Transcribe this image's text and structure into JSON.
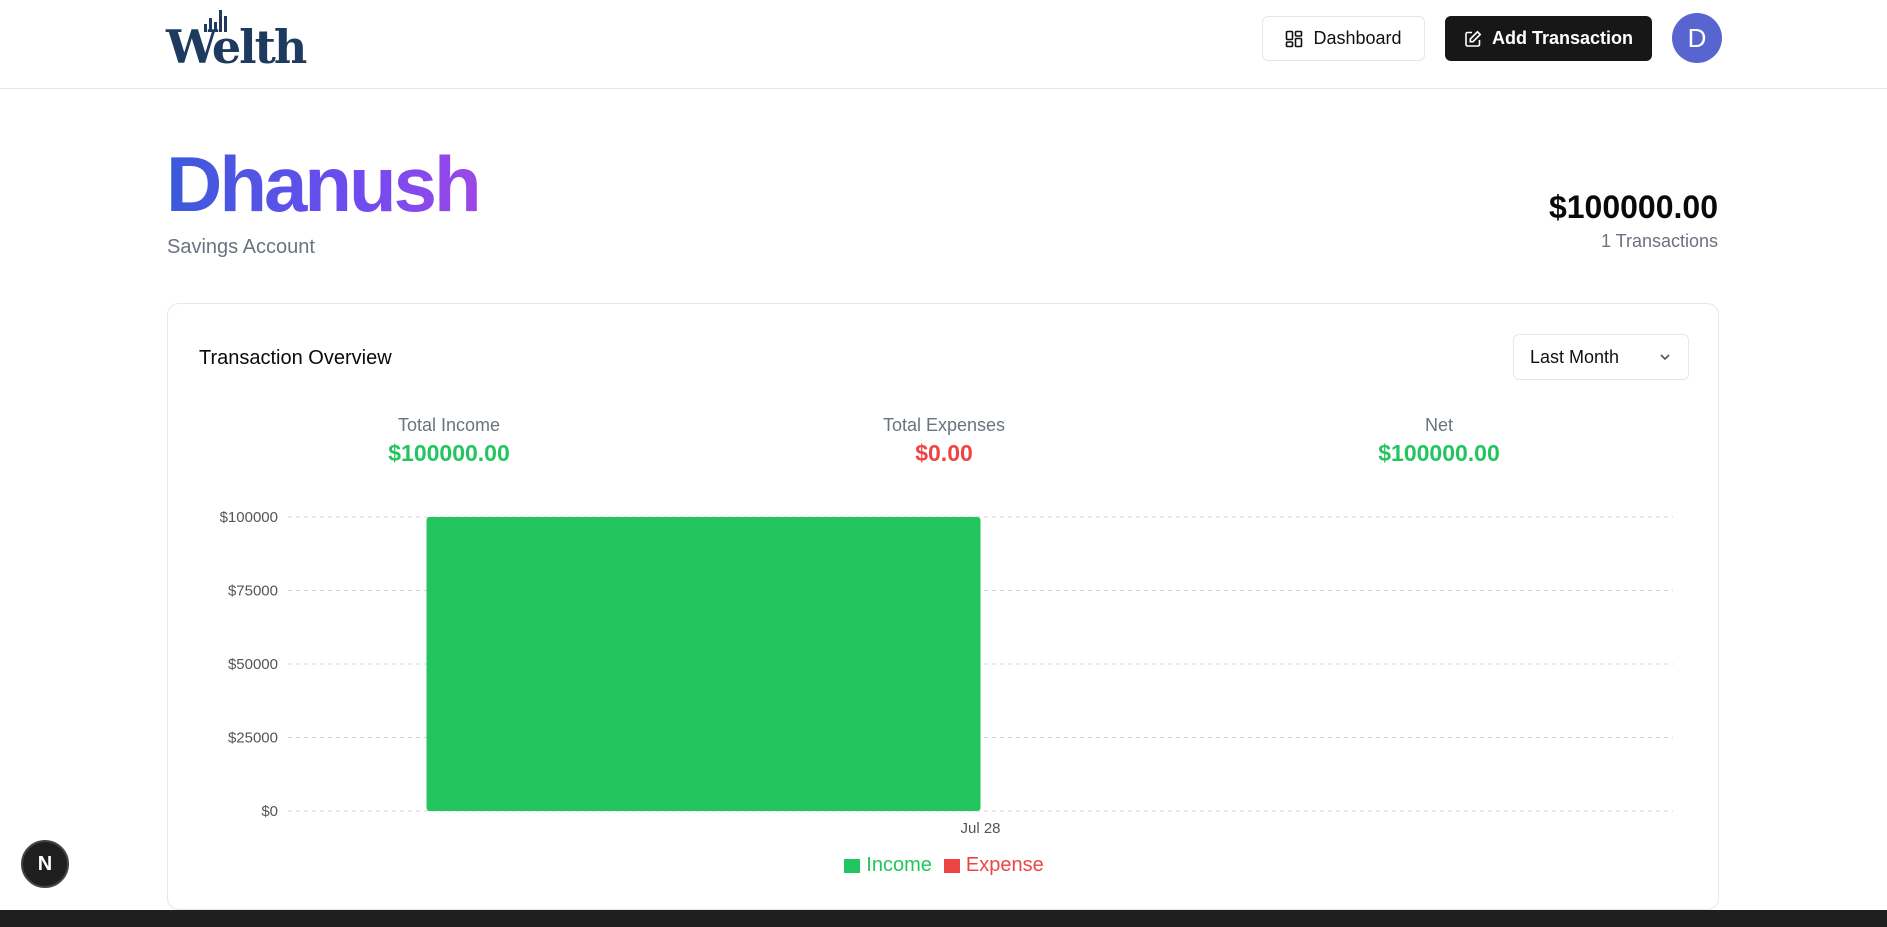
{
  "header": {
    "logo_text": "Welth",
    "dashboard_label": "Dashboard",
    "add_transaction_label": "Add Transaction",
    "avatar_initial": "D"
  },
  "account": {
    "name": "Dhanush",
    "type": "Savings Account",
    "balance": "$100000.00",
    "transaction_count": "1 Transactions"
  },
  "overview": {
    "title": "Transaction Overview",
    "range_selected": "Last Month",
    "stats": {
      "income_label": "Total Income",
      "income_value": "$100000.00",
      "expenses_label": "Total Expenses",
      "expenses_value": "$0.00",
      "net_label": "Net",
      "net_value": "$100000.00"
    }
  },
  "chart_data": {
    "type": "bar",
    "categories": [
      "Jul 28"
    ],
    "series": [
      {
        "name": "Income",
        "values": [
          100000
        ],
        "color": "#22c55e"
      },
      {
        "name": "Expense",
        "values": [
          0
        ],
        "color": "#ef4444"
      }
    ],
    "yticks": [
      "$0",
      "$25000",
      "$50000",
      "$75000",
      "$100000"
    ],
    "ylim": [
      0,
      100000
    ],
    "grid": true,
    "legend": "bottom-center"
  },
  "colors": {
    "income": "#22c55e",
    "expense": "#ef4444",
    "accent": "#171717"
  }
}
